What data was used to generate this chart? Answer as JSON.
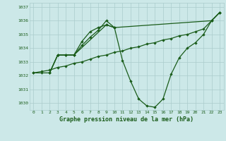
{
  "bg_color": "#cce8e8",
  "grid_color": "#aacccc",
  "line_color": "#1a5c1a",
  "title": "Graphe pression niveau de la mer (hPa)",
  "xlim": [
    -0.5,
    23.5
  ],
  "ylim": [
    1029.5,
    1037.3
  ],
  "yticks": [
    1030,
    1031,
    1032,
    1033,
    1034,
    1035,
    1036,
    1037
  ],
  "xticks": [
    0,
    1,
    2,
    3,
    4,
    5,
    6,
    7,
    8,
    9,
    10,
    11,
    12,
    13,
    14,
    15,
    16,
    17,
    18,
    19,
    20,
    21,
    22,
    23
  ],
  "line1_x": [
    0,
    1,
    2,
    3,
    4,
    5,
    6,
    7,
    8,
    9,
    10,
    11,
    12,
    13,
    14,
    15,
    16,
    17,
    18,
    19,
    20,
    21,
    22,
    23
  ],
  "line1_y": [
    1032.2,
    1032.3,
    1032.4,
    1032.6,
    1032.7,
    1032.9,
    1033.0,
    1033.2,
    1033.4,
    1033.5,
    1033.7,
    1033.8,
    1034.0,
    1034.1,
    1034.3,
    1034.4,
    1034.6,
    1034.7,
    1034.9,
    1035.0,
    1035.2,
    1035.4,
    1036.0,
    1036.6
  ],
  "line2_x": [
    2,
    3,
    4,
    5,
    6,
    7,
    8,
    9,
    10,
    11,
    12,
    13,
    14,
    15,
    16,
    17,
    18,
    19,
    20,
    21,
    22,
    23
  ],
  "line2_y": [
    1032.2,
    1033.5,
    1033.5,
    1033.5,
    1034.5,
    1035.2,
    1035.5,
    1035.7,
    1035.5,
    1033.1,
    1031.6,
    1030.3,
    1029.8,
    1029.7,
    1030.3,
    1032.1,
    1033.3,
    1034.0,
    1034.4,
    1035.0,
    1036.0,
    1036.6
  ],
  "line3_x": [
    2,
    3,
    4,
    5,
    6,
    7,
    8,
    9,
    10
  ],
  "line3_y": [
    1032.2,
    1033.5,
    1033.5,
    1033.5,
    1034.2,
    1034.8,
    1035.3,
    1036.0,
    1035.5
  ],
  "line4_x": [
    0,
    1,
    2,
    3,
    4,
    5,
    9,
    10,
    22,
    23
  ],
  "line4_y": [
    1032.2,
    1032.2,
    1032.2,
    1033.5,
    1033.5,
    1033.5,
    1035.7,
    1035.5,
    1036.0,
    1036.6
  ]
}
